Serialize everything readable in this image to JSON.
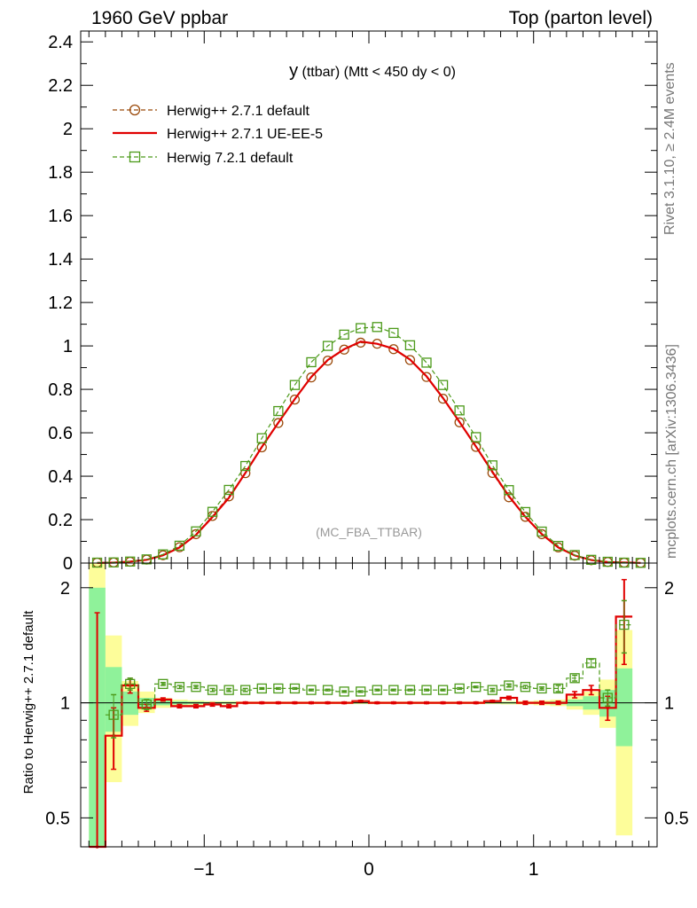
{
  "header": {
    "left": "1960 GeV ppbar",
    "right": "Top (parton level)"
  },
  "side": {
    "rivet": "Rivet 3.1.10, ≥ 2.4M events",
    "mcplots": "mcplots.cern.ch [arXiv:1306.3436]"
  },
  "chart_data": {
    "type": "line",
    "title": "y (ttbar) (Mtt < 450 dy < 0)",
    "title_main": "y",
    "title_rest": " (ttbar) (Mtt < 450 dy < 0)",
    "watermark": "(MC_FBA_TTBAR)",
    "ratio_ylabel": "Ratio to Herwig++ 2.7.1 default",
    "xlim": [
      -1.75,
      1.75
    ],
    "ylim": [
      0,
      2.45
    ],
    "ratio_ylim": [
      0.42,
      2.32
    ],
    "ratio_log": true,
    "grid": false,
    "legend_position": "top-left",
    "x_ticks": [
      "−1",
      "0",
      "1"
    ],
    "x_tick_values": [
      -1,
      0,
      1
    ],
    "y_ticks": [
      "0",
      "0.2",
      "0.4",
      "0.6",
      "0.8",
      "1",
      "1.2",
      "1.4",
      "1.6",
      "1.8",
      "2",
      "2.2",
      "2.4"
    ],
    "y_tick_values": [
      0,
      0.2,
      0.4,
      0.6,
      0.8,
      1.0,
      1.2,
      1.4,
      1.6,
      1.8,
      2.0,
      2.2,
      2.4
    ],
    "ratio_y_ticks": [
      "0.5",
      "1",
      "2"
    ],
    "ratio_y_tick_values": [
      0.5,
      1,
      2
    ],
    "x": [
      -1.65,
      -1.55,
      -1.45,
      -1.35,
      -1.25,
      -1.15,
      -1.05,
      -0.95,
      -0.85,
      -0.75,
      -0.65,
      -0.55,
      -0.45,
      -0.35,
      -0.25,
      -0.15,
      -0.05,
      0.05,
      0.15,
      0.25,
      0.35,
      0.45,
      0.55,
      0.65,
      0.75,
      0.85,
      0.95,
      1.05,
      1.15,
      1.25,
      1.35,
      1.45,
      1.55,
      1.65
    ],
    "series": [
      {
        "name": "Herwig++ 2.7.1 default",
        "color": "#9b4a0b",
        "style": "dashed",
        "marker": "circle",
        "values": [
          0.002,
          0.003,
          0.006,
          0.016,
          0.036,
          0.073,
          0.133,
          0.217,
          0.307,
          0.414,
          0.533,
          0.645,
          0.753,
          0.855,
          0.932,
          0.983,
          1.015,
          1.01,
          0.985,
          0.935,
          0.857,
          0.757,
          0.648,
          0.535,
          0.415,
          0.303,
          0.213,
          0.133,
          0.072,
          0.034,
          0.013,
          0.005,
          0.002,
          0.001
        ],
        "ratio": [
          null,
          null,
          null,
          null,
          null,
          null,
          null,
          null,
          null,
          null,
          null,
          null,
          null,
          null,
          null,
          null,
          null,
          null,
          null,
          null,
          null,
          null,
          null,
          null,
          null,
          null,
          null,
          null,
          null,
          null,
          null,
          null,
          null,
          null
        ]
      },
      {
        "name": "Herwig++ 2.7.1 UE-EE-5",
        "color": "#e00000",
        "style": "solid",
        "marker": "none",
        "values": [
          0.001,
          0.002,
          0.007,
          0.015,
          0.036,
          0.072,
          0.13,
          0.212,
          0.3,
          0.415,
          0.535,
          0.647,
          0.755,
          0.857,
          0.935,
          0.985,
          1.02,
          1.01,
          0.987,
          0.937,
          0.86,
          0.76,
          0.65,
          0.537,
          0.42,
          0.308,
          0.213,
          0.133,
          0.072,
          0.035,
          0.014,
          0.005,
          0.003,
          0.001
        ],
        "ratio": [
          0.38,
          0.82,
          1.11,
          0.97,
          1.02,
          0.98,
          0.98,
          0.99,
          0.98,
          1.0,
          1.0,
          1.0,
          1.0,
          1.0,
          1.0,
          1.0,
          1.01,
          1.0,
          1.0,
          1.0,
          1.0,
          1.0,
          1.0,
          1.0,
          1.01,
          1.03,
          1.0,
          1.0,
          1.0,
          1.05,
          1.08,
          0.97,
          1.68,
          null
        ],
        "ratio_err": [
          1.34,
          0.15,
          0.05,
          0.02,
          0.01,
          0.01,
          0.01,
          0.01,
          0.01,
          0.005,
          0.005,
          0.005,
          0.005,
          0.005,
          0.005,
          0.005,
          0.005,
          0.005,
          0.005,
          0.005,
          0.005,
          0.005,
          0.005,
          0.005,
          0.005,
          0.01,
          0.01,
          0.01,
          0.01,
          0.02,
          0.03,
          0.07,
          0.42,
          null
        ]
      },
      {
        "name": "Herwig 7.2.1 default",
        "color": "#4c9a1a",
        "style": "dashed",
        "marker": "square",
        "values": [
          0.002,
          0.003,
          0.007,
          0.017,
          0.04,
          0.08,
          0.146,
          0.236,
          0.337,
          0.447,
          0.575,
          0.7,
          0.82,
          0.925,
          1.0,
          1.052,
          1.082,
          1.087,
          1.06,
          1.003,
          0.923,
          0.82,
          0.703,
          0.58,
          0.45,
          0.336,
          0.235,
          0.145,
          0.079,
          0.037,
          0.015,
          0.006,
          0.002,
          0.001
        ],
        "ratio": [
          null,
          0.93,
          1.12,
          0.99,
          1.12,
          1.1,
          1.1,
          1.08,
          1.08,
          1.08,
          1.09,
          1.09,
          1.09,
          1.08,
          1.08,
          1.07,
          1.07,
          1.08,
          1.08,
          1.08,
          1.08,
          1.08,
          1.09,
          1.1,
          1.08,
          1.11,
          1.1,
          1.09,
          1.09,
          1.16,
          1.27,
          1.03,
          1.6,
          null
        ],
        "ratio_err": [
          null,
          0.12,
          0.04,
          0.03,
          0.01,
          0.01,
          0.01,
          0.01,
          0.01,
          0.01,
          0.005,
          0.005,
          0.005,
          0.005,
          0.005,
          0.005,
          0.005,
          0.005,
          0.005,
          0.005,
          0.005,
          0.005,
          0.005,
          0.005,
          0.01,
          0.01,
          0.01,
          0.01,
          0.02,
          0.02,
          0.03,
          0.05,
          0.25,
          null
        ]
      }
    ],
    "bands": {
      "inner_color": "#8ff29a",
      "outer_color": "#fdfd9a",
      "green": [
        [
          0.35,
          2.0
        ],
        [
          0.84,
          1.24
        ],
        [
          0.93,
          1.07
        ],
        [
          0.97,
          1.03
        ],
        [
          0.985,
          1.015
        ],
        [
          0.99,
          1.01
        ],
        [
          0.993,
          1.007
        ],
        [
          0.995,
          1.005
        ],
        [
          0.995,
          1.005
        ],
        [
          0.996,
          1.004
        ],
        [
          0.996,
          1.004
        ],
        [
          0.996,
          1.004
        ],
        [
          0.996,
          1.004
        ],
        [
          0.996,
          1.004
        ],
        [
          0.996,
          1.004
        ],
        [
          0.996,
          1.004
        ],
        [
          0.996,
          1.004
        ],
        [
          0.996,
          1.004
        ],
        [
          0.996,
          1.004
        ],
        [
          0.996,
          1.004
        ],
        [
          0.996,
          1.004
        ],
        [
          0.996,
          1.004
        ],
        [
          0.996,
          1.004
        ],
        [
          0.996,
          1.004
        ],
        [
          0.996,
          1.004
        ],
        [
          0.995,
          1.005
        ],
        [
          0.995,
          1.005
        ],
        [
          0.993,
          1.007
        ],
        [
          0.99,
          1.01
        ],
        [
          0.98,
          1.02
        ],
        [
          0.96,
          1.04
        ],
        [
          0.92,
          1.08
        ],
        [
          0.77,
          1.23
        ],
        [
          null,
          null
        ]
      ],
      "yellow": [
        [
          0.3,
          2.5
        ],
        [
          0.62,
          1.5
        ],
        [
          0.87,
          1.14
        ],
        [
          0.94,
          1.07
        ],
        [
          0.97,
          1.03
        ],
        [
          0.98,
          1.02
        ],
        [
          0.985,
          1.015
        ],
        [
          0.99,
          1.01
        ],
        [
          0.99,
          1.01
        ],
        [
          0.992,
          1.008
        ],
        [
          0.992,
          1.008
        ],
        [
          0.992,
          1.008
        ],
        [
          0.992,
          1.008
        ],
        [
          0.992,
          1.008
        ],
        [
          0.992,
          1.008
        ],
        [
          0.992,
          1.008
        ],
        [
          0.992,
          1.008
        ],
        [
          0.992,
          1.008
        ],
        [
          0.992,
          1.008
        ],
        [
          0.992,
          1.008
        ],
        [
          0.992,
          1.008
        ],
        [
          0.992,
          1.008
        ],
        [
          0.992,
          1.008
        ],
        [
          0.992,
          1.008
        ],
        [
          0.992,
          1.008
        ],
        [
          0.99,
          1.01
        ],
        [
          0.99,
          1.01
        ],
        [
          0.985,
          1.015
        ],
        [
          0.98,
          1.02
        ],
        [
          0.96,
          1.04
        ],
        [
          0.93,
          1.07
        ],
        [
          0.86,
          1.15
        ],
        [
          0.45,
          1.55
        ],
        [
          null,
          null
        ]
      ]
    }
  }
}
